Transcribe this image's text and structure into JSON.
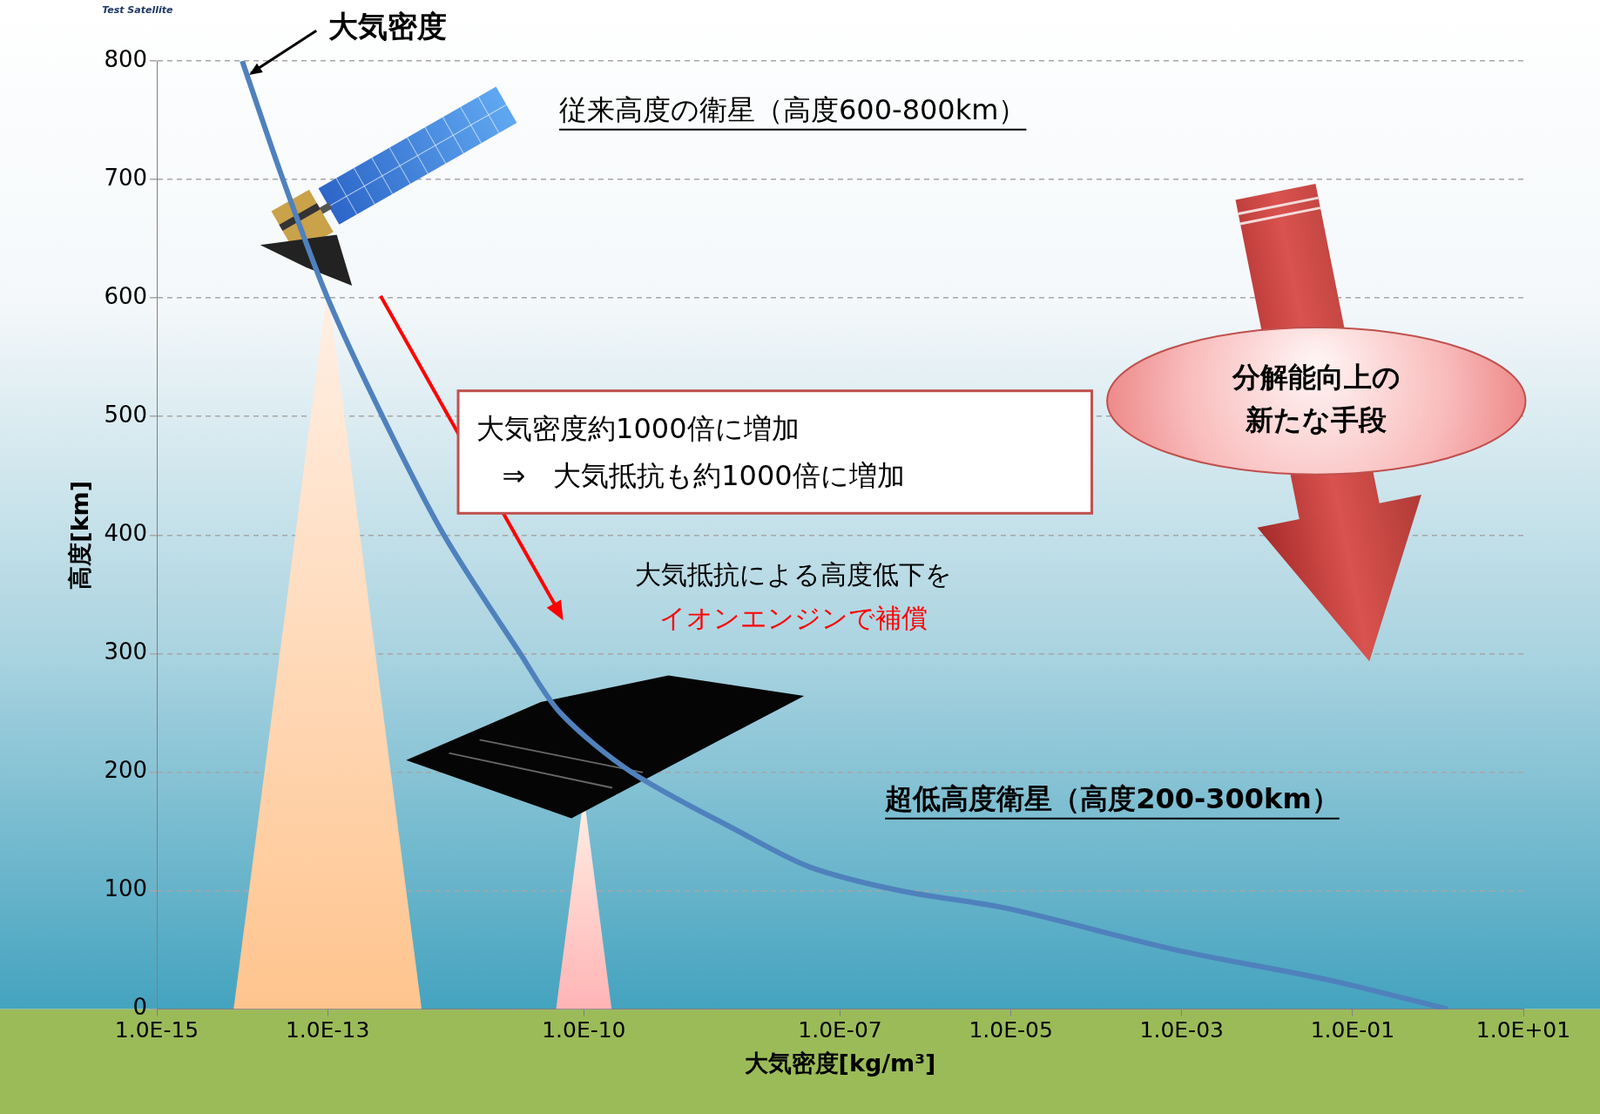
{
  "chart_data": {
    "type": "line",
    "x_label": "大気密度[kg/m³]",
    "y_label": "高度[km]",
    "log": "x",
    "grid": true,
    "x": [
      1.3,
      0.05,
      0.00085,
      9e-06,
      5e-07,
      4.4e-08,
      6.5e-09,
      3.6e-10,
      5.3e-11,
      1.8e-11,
      2.3e-12,
      4.4e-13,
      1e-13,
      3e-14,
      1e-14
    ],
    "series": [
      {
        "name": "大気密度",
        "color": "#4f81bd",
        "values": [
          0,
          25,
          50,
          85,
          100,
          120,
          150,
          200,
          250,
          300,
          400,
          500,
          600,
          700,
          800
        ]
      }
    ],
    "xlim": [
      1e-15,
      10
    ],
    "xticks": [
      {
        "value": 1e-15,
        "label": "1.0E-15"
      },
      {
        "value": 1e-13,
        "label": "1.0E-13"
      },
      {
        "value": 1e-10,
        "label": "1.0E-10"
      },
      {
        "value": 1e-07,
        "label": "1.0E-07"
      },
      {
        "value": 1e-05,
        "label": "1.0E-05"
      },
      {
        "value": 0.001,
        "label": "1.0E-03"
      },
      {
        "value": 0.1,
        "label": "1.0E-01"
      },
      {
        "value": 10,
        "label": "1.0E+01"
      }
    ],
    "ylim": [
      0,
      800
    ],
    "yticks": [
      0,
      100,
      200,
      300,
      400,
      500,
      600,
      700,
      800
    ],
    "highlights": [
      {
        "x": 1e-13,
        "y": 610,
        "color": "#ffc48e"
      },
      {
        "x": 1e-10,
        "y": 180,
        "color": "#ffb4b4"
      }
    ],
    "annotations": {
      "logo": "Test Satellite",
      "conventional_satellite": "従来高度の衛星（高度600-800km）",
      "vleo_satellite": "超低高度衛星（高度200-300km）",
      "box": [
        "大気密度約1000倍に増加",
        "⇒　大気抵抗も約1000倍に増加"
      ],
      "arrow_note": [
        "大気抵抗による高度低下を",
        "イオンエンジンで補償"
      ],
      "ellipse": [
        "分解能向上の",
        "新たな手段"
      ]
    }
  }
}
